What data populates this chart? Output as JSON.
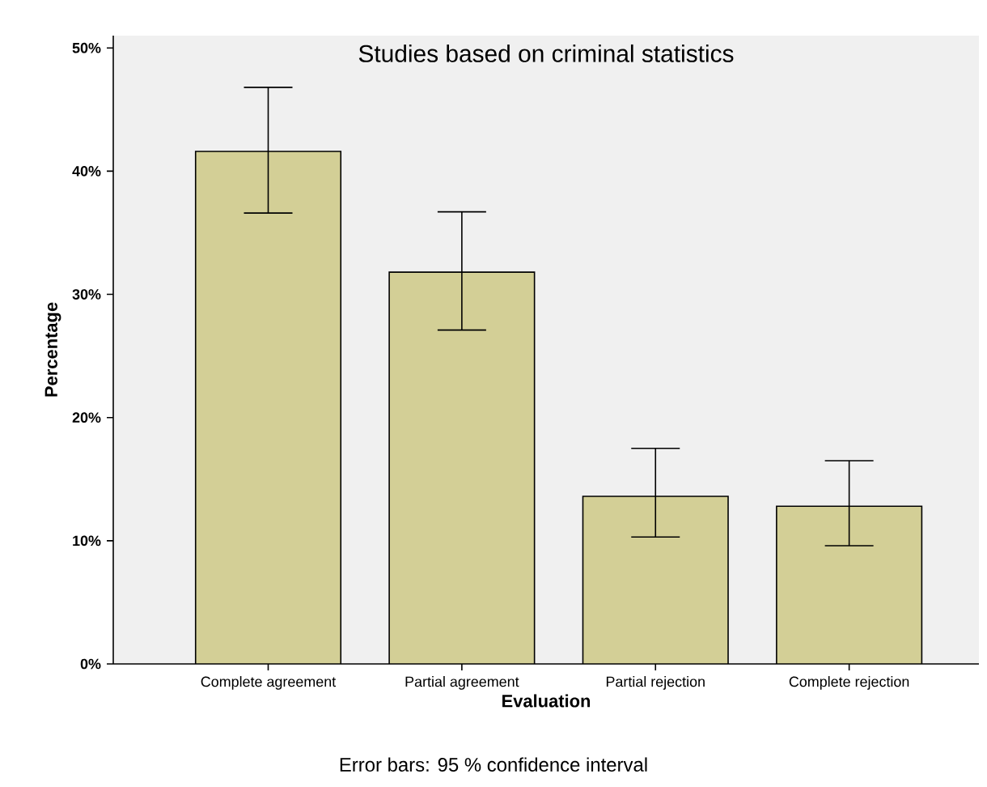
{
  "chart_data": {
    "type": "bar",
    "title": "Studies based on criminal statistics",
    "xlabel": "Evaluation",
    "ylabel": "Percentage",
    "categories": [
      "Complete agreement",
      "Partial agreement",
      "Partial rejection",
      "Complete rejection"
    ],
    "values": [
      41.6,
      31.8,
      13.6,
      12.8
    ],
    "errors": [
      [
        36.6,
        46.8
      ],
      [
        27.1,
        36.7
      ],
      [
        10.3,
        17.5
      ],
      [
        9.6,
        16.5
      ]
    ],
    "color": "#d3cf96",
    "ylim": [
      0,
      51
    ],
    "yticks": [
      {
        "value": 0,
        "label": "0%"
      },
      {
        "value": 10,
        "label": "10%"
      },
      {
        "value": 20,
        "label": "20%"
      },
      {
        "value": 30,
        "label": "30%"
      },
      {
        "value": 40,
        "label": "40%"
      },
      {
        "value": 50,
        "label": "50%"
      }
    ],
    "annotations": [
      "Error bars: 95 % confidence interval"
    ]
  }
}
